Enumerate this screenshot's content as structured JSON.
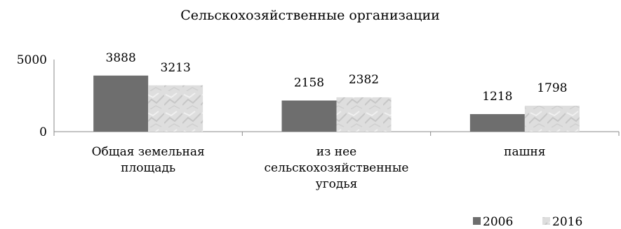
{
  "chart_data": {
    "type": "bar",
    "title": "Сельскохозяйственные организации",
    "categories": [
      [
        "Общая земельная",
        "площадь"
      ],
      [
        "из нее",
        "сельскохозяйственные",
        "угодья"
      ],
      [
        "пашня"
      ]
    ],
    "series": [
      {
        "name": "2006",
        "values": [
          3888,
          2158,
          1218
        ],
        "color": "#6e6e6e"
      },
      {
        "name": "2016",
        "values": [
          3213,
          2382,
          1798
        ],
        "color": "#dcdcdc"
      }
    ],
    "y_ticks": [
      {
        "label": "5000",
        "value": 5000
      },
      {
        "label": "0",
        "value": 0
      }
    ],
    "ylim": [
      0,
      5000
    ],
    "grid": false,
    "legend_position": "bottom-right",
    "xlabel": "",
    "ylabel": ""
  }
}
